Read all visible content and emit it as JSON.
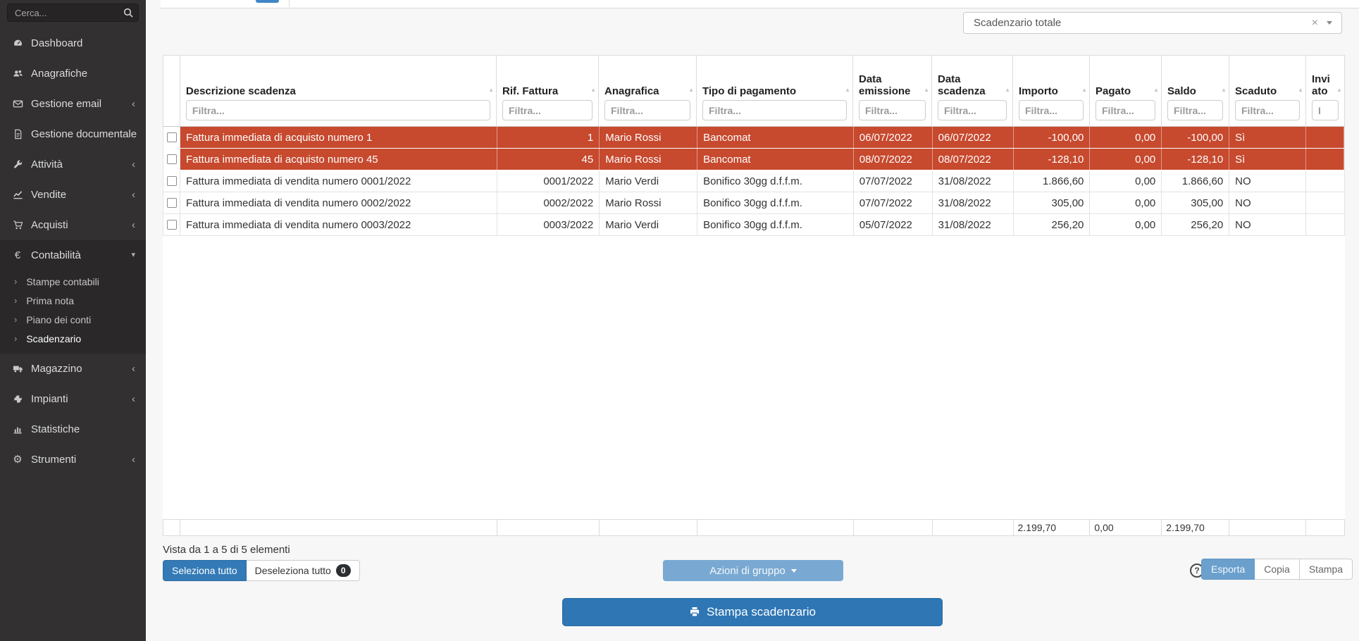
{
  "sidebar": {
    "search_placeholder": "Cerca...",
    "items": [
      {
        "label": "Dashboard",
        "icon": "dashboard"
      },
      {
        "label": "Anagrafiche",
        "icon": "users"
      },
      {
        "label": "Gestione email",
        "icon": "envelope",
        "chevron": "collapsed"
      },
      {
        "label": "Gestione documentale",
        "icon": "document"
      },
      {
        "label": "Attività",
        "icon": "wrench",
        "chevron": "collapsed"
      },
      {
        "label": "Vendite",
        "icon": "chart-line",
        "chevron": "collapsed"
      },
      {
        "label": "Acquisti",
        "icon": "cart",
        "chevron": "collapsed"
      },
      {
        "label": "Contabilità",
        "icon": "euro",
        "chevron": "expanded",
        "expanded": true,
        "children": [
          "Stampe contabili",
          "Prima nota",
          "Piano dei conti",
          "Scadenzario"
        ],
        "active_child": "Scadenzario"
      },
      {
        "label": "Magazzino",
        "icon": "truck",
        "chevron": "collapsed"
      },
      {
        "label": "Impianti",
        "icon": "puzzle",
        "chevron": "collapsed"
      },
      {
        "label": "Statistiche",
        "icon": "bar-chart"
      },
      {
        "label": "Strumenti",
        "icon": "gear",
        "chevron": "collapsed"
      }
    ]
  },
  "toolbar": {
    "scope_value": "Scadenzario totale"
  },
  "table": {
    "columns": [
      {
        "label": "Descrizione scadenza",
        "filter_placeholder": "Filtra..."
      },
      {
        "label": "Rif. Fattura",
        "filter_placeholder": "Filtra..."
      },
      {
        "label": "Anagrafica",
        "filter_placeholder": "Filtra..."
      },
      {
        "label": "Tipo di pagamento",
        "filter_placeholder": "Filtra..."
      },
      {
        "label": "Data emissione",
        "filter_placeholder": "Filtra..."
      },
      {
        "label": "Data scadenza",
        "filter_placeholder": "Filtra..."
      },
      {
        "label": "Importo",
        "filter_placeholder": "Filtra..."
      },
      {
        "label": "Pagato",
        "filter_placeholder": "Filtra..."
      },
      {
        "label": "Saldo",
        "filter_placeholder": "Filtra..."
      },
      {
        "label": "Scaduto",
        "filter_placeholder": "Filtra..."
      },
      {
        "label": "Inviato",
        "filter_placeholder": "I"
      }
    ],
    "rows": [
      {
        "overdue": true,
        "cells": [
          "Fattura immediata di acquisto numero 1",
          "1",
          "Mario Rossi",
          "Bancomat",
          "06/07/2022",
          "06/07/2022",
          "-100,00",
          "0,00",
          "-100,00",
          "Sì",
          ""
        ]
      },
      {
        "overdue": true,
        "cells": [
          "Fattura immediata di acquisto numero 45",
          "45",
          "Mario Rossi",
          "Bancomat",
          "08/07/2022",
          "08/07/2022",
          "-128,10",
          "0,00",
          "-128,10",
          "Sì",
          ""
        ]
      },
      {
        "overdue": false,
        "cells": [
          "Fattura immediata di vendita numero 0001/2022",
          "0001/2022",
          "Mario Verdi",
          "Bonifico 30gg d.f.f.m.",
          "07/07/2022",
          "31/08/2022",
          "1.866,60",
          "0,00",
          "1.866,60",
          "NO",
          ""
        ]
      },
      {
        "overdue": false,
        "cells": [
          "Fattura immediata di vendita numero 0002/2022",
          "0002/2022",
          "Mario Rossi",
          "Bonifico 30gg d.f.f.m.",
          "07/07/2022",
          "31/08/2022",
          "305,00",
          "0,00",
          "305,00",
          "NO",
          ""
        ]
      },
      {
        "overdue": false,
        "cells": [
          "Fattura immediata di vendita numero 0003/2022",
          "0003/2022",
          "Mario Verdi",
          "Bonifico 30gg d.f.f.m.",
          "05/07/2022",
          "31/08/2022",
          "256,20",
          "0,00",
          "256,20",
          "NO",
          ""
        ]
      }
    ],
    "totals": [
      "",
      "",
      "",
      "",
      "",
      "",
      "2.199,70",
      "0,00",
      "2.199,70",
      "",
      ""
    ]
  },
  "footer": {
    "info": "Vista da 1 a 5 di 5 elementi",
    "select_all_label": "Seleziona tutto",
    "deselect_all_label": "Deseleziona tutto",
    "deselect_count": "0",
    "group_actions_label": "Azioni di gruppo",
    "export_label": "Esporta",
    "copy_label": "Copia",
    "print_label": "Stampa",
    "print_button_label": "Stampa scadenzario"
  },
  "icons": {
    "clear": "×",
    "sort": "▲",
    "chevron_collapsed": "‹",
    "chevron_expanded": "▾",
    "subitem_arrow": "›",
    "help": "?"
  },
  "colors": {
    "overdue_row": "#c7492e",
    "primary_blue": "#337ab7",
    "big_button_blue": "#2e76b4",
    "light_blue": "#6ba0cd",
    "sidebar_bg": "#323030"
  }
}
